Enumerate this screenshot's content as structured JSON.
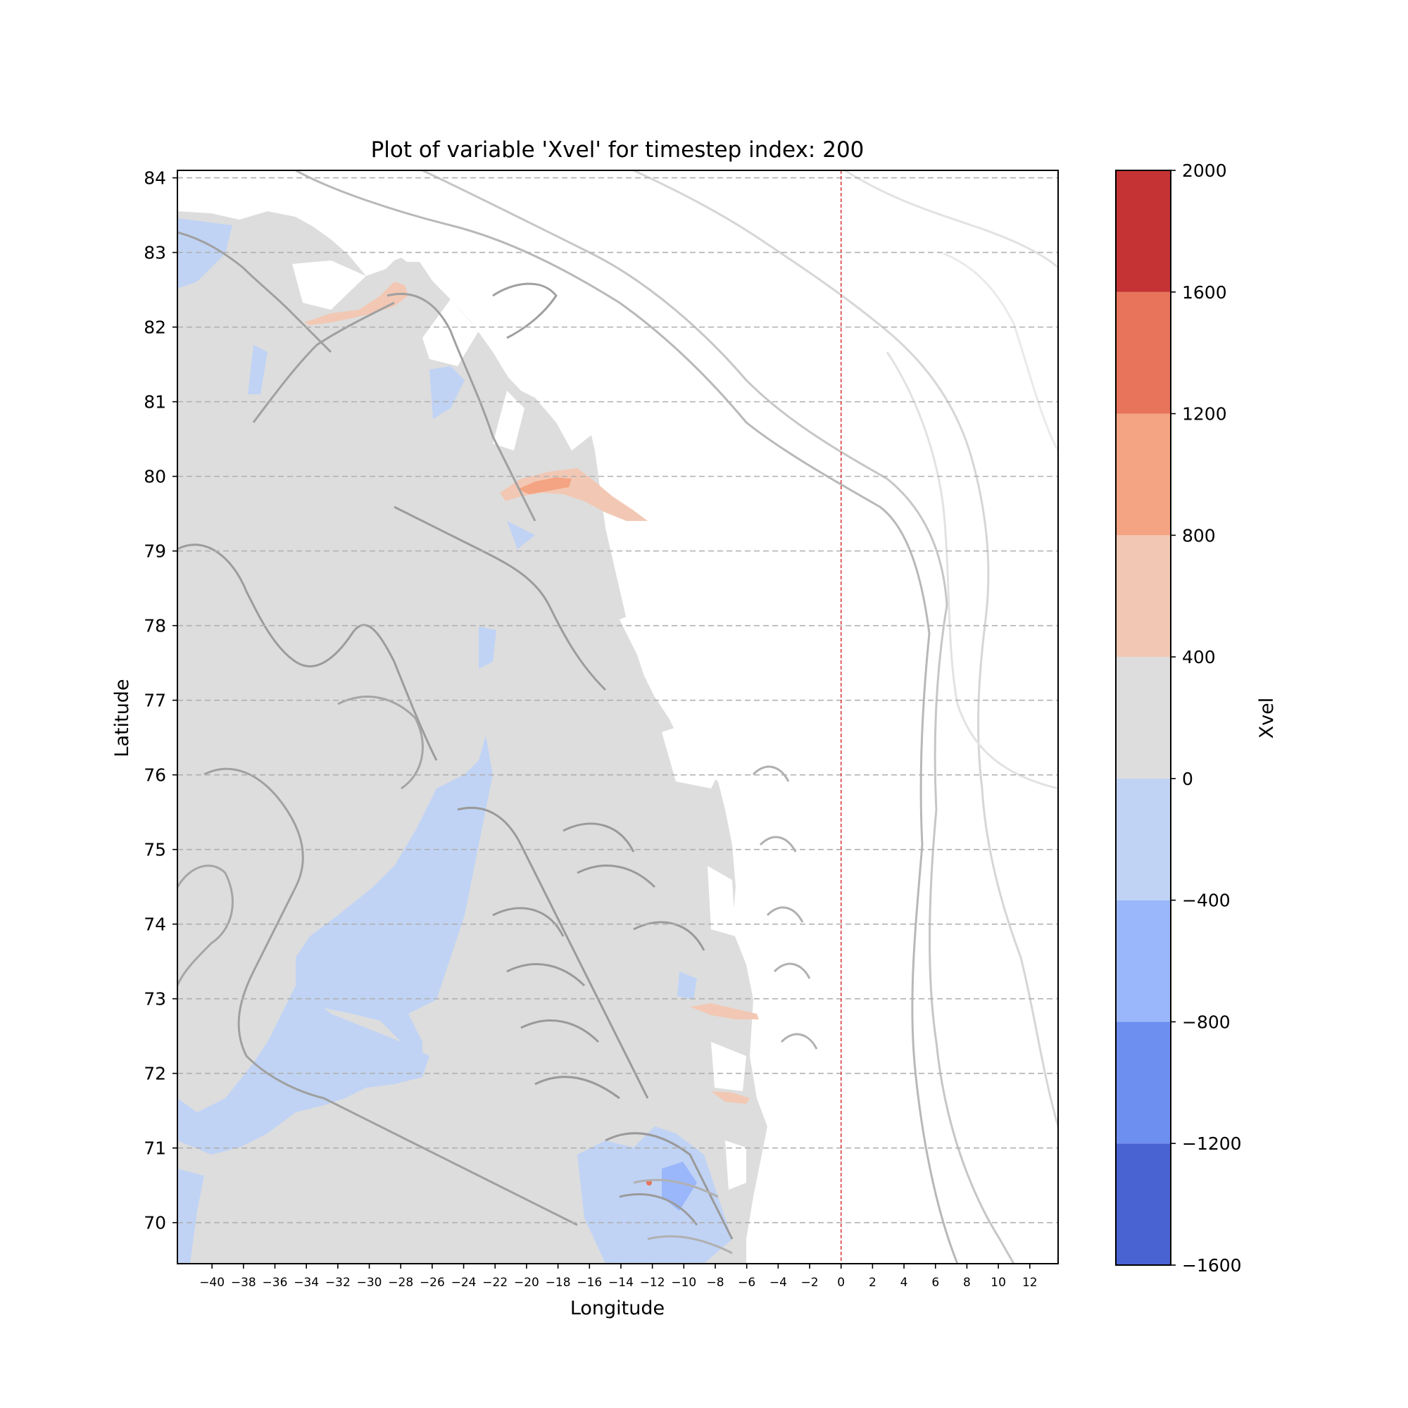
{
  "chart_data": {
    "type": "heatmap",
    "title": "Plot of variable 'Xvel' for timestep index: 200",
    "xlabel": "Longitude",
    "ylabel": "Latitude",
    "xlim": [
      -42.2,
      13.8
    ],
    "ylim": [
      69.45,
      84.1
    ],
    "x_ticks": [
      -40,
      -38,
      -36,
      -34,
      -32,
      -30,
      -28,
      -26,
      -24,
      -22,
      -20,
      -18,
      -16,
      -14,
      -12,
      -10,
      -8,
      -6,
      -4,
      -2,
      0,
      2,
      4,
      6,
      8,
      10,
      12
    ],
    "y_ticks": [
      70,
      71,
      72,
      73,
      74,
      75,
      76,
      77,
      78,
      79,
      80,
      81,
      82,
      83,
      84
    ],
    "grid": "horizontal dashed",
    "reference_line": {
      "longitude": 0,
      "color": "#d62728",
      "style": "dashed"
    },
    "colorbar": {
      "label": "Xvel",
      "levels": [
        -1600,
        -1200,
        -800,
        -400,
        0,
        400,
        800,
        1200,
        1600,
        2000
      ],
      "colors": [
        "#4a63d3",
        "#6d8ff0",
        "#9bb7fb",
        "#c0d3f5",
        "#dddddd",
        "#f2c8b4",
        "#f4a482",
        "#e7745b",
        "#c53334"
      ]
    },
    "regions": [
      {
        "value_range": [
          0,
          400
        ],
        "description": "bulk of ice sheet region, longitude -42 to about -6"
      },
      {
        "value_range": [
          -400,
          0
        ],
        "description": "large band from 76N down to 72N near -30, coastal patches"
      },
      {
        "value_range": [
          400,
          1200
        ],
        "description": "streams near 82.2N -30, 79.9N -18, 72.8N -8, 71.7N -7"
      }
    ]
  }
}
